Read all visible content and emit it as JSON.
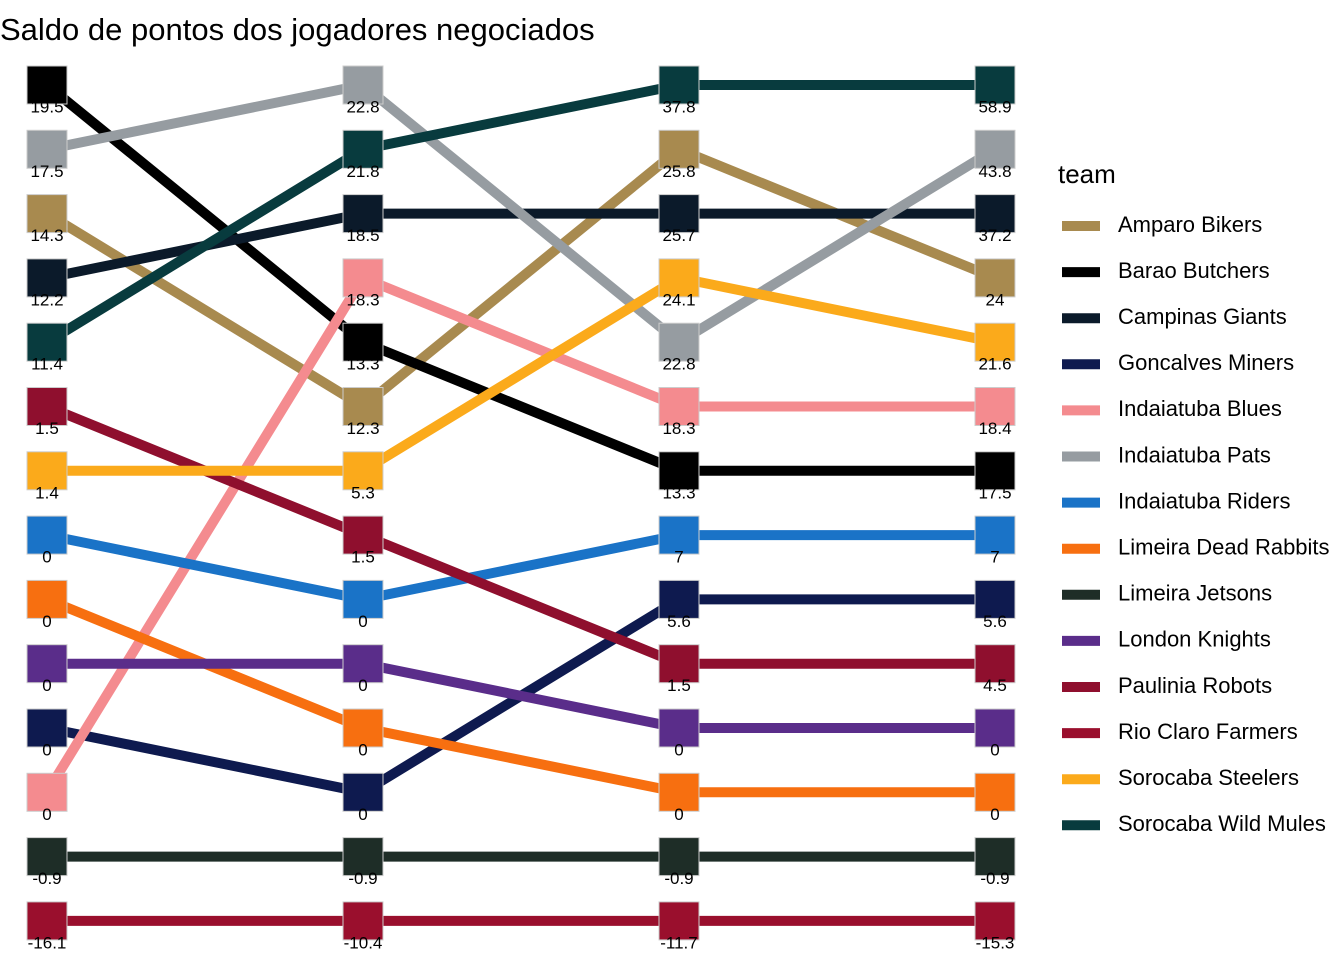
{
  "chart_data": {
    "type": "bump",
    "title": "Saldo de pontos dos jogadores negociados",
    "legend_title": "team",
    "series": [
      {
        "name": "Amparo Bikers",
        "color": "#a88a4f",
        "ranks": [
          3,
          6,
          2,
          4
        ],
        "values": [
          14.3,
          12.3,
          25.8,
          24
        ]
      },
      {
        "name": "Barao Butchers",
        "color": "#000000",
        "ranks": [
          1,
          5,
          7,
          7
        ],
        "values": [
          19.5,
          13.3,
          13.3,
          17.5
        ]
      },
      {
        "name": "Campinas Giants",
        "color": "#0b1a2a",
        "ranks": [
          4,
          3,
          3,
          3
        ],
        "values": [
          12.2,
          18.5,
          25.7,
          37.2
        ]
      },
      {
        "name": "Goncalves Miners",
        "color": "#0e1a4f",
        "ranks": [
          11,
          12,
          9,
          9
        ],
        "values": [
          0,
          0,
          5.6,
          5.6
        ]
      },
      {
        "name": "Indaiatuba Blues",
        "color": "#f48b8f",
        "ranks": [
          12,
          4,
          6,
          6
        ],
        "values": [
          0,
          18.3,
          18.3,
          18.4
        ]
      },
      {
        "name": "Indaiatuba Pats",
        "color": "#969ca1",
        "ranks": [
          2,
          1,
          5,
          2
        ],
        "values": [
          17.5,
          22.8,
          22.8,
          43.8
        ]
      },
      {
        "name": "Indaiatuba Riders",
        "color": "#1a73c7",
        "ranks": [
          8,
          9,
          8,
          8
        ],
        "values": [
          0,
          0,
          7,
          7
        ]
      },
      {
        "name": "Limeira Dead Rabbits",
        "color": "#f76f10",
        "ranks": [
          9,
          11,
          12,
          12
        ],
        "values": [
          0,
          0,
          0,
          0
        ]
      },
      {
        "name": "Limeira Jetsons",
        "color": "#1e2d27",
        "ranks": [
          13,
          13,
          13,
          13
        ],
        "values": [
          -0.9,
          -0.9,
          -0.9,
          -0.9
        ]
      },
      {
        "name": "London Knights",
        "color": "#5a2d8a",
        "ranks": [
          10,
          10,
          11,
          11
        ],
        "values": [
          0,
          0,
          0,
          0
        ]
      },
      {
        "name": "Paulinia Robots",
        "color": "#8f0f2e",
        "ranks": [
          6,
          8,
          10,
          10
        ],
        "values": [
          1.5,
          1.5,
          1.5,
          4.5
        ]
      },
      {
        "name": "Rio Claro Farmers",
        "color": "#9a0f2d",
        "ranks": [
          14,
          14,
          14,
          14
        ],
        "values": [
          -16.1,
          -10.4,
          -11.7,
          -15.3
        ]
      },
      {
        "name": "Sorocaba Steelers",
        "color": "#fbaa1b",
        "ranks": [
          7,
          7,
          4,
          5
        ],
        "values": [
          1.4,
          5.3,
          24.1,
          21.6
        ]
      },
      {
        "name": "Sorocaba Wild Mules",
        "color": "#083b3e",
        "ranks": [
          5,
          2,
          1,
          1
        ],
        "values": [
          11.4,
          21.8,
          37.8,
          58.9
        ]
      }
    ]
  }
}
